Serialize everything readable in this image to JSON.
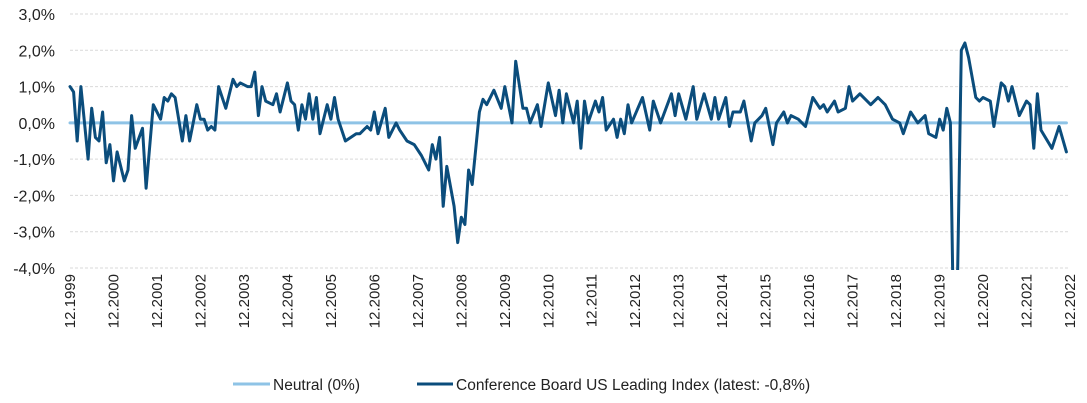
{
  "chart_data": {
    "type": "line",
    "title": "",
    "xlabel": "",
    "ylabel": "",
    "ylim": [
      -4.0,
      3.0
    ],
    "y_ticks": [
      "3,0%",
      "2,0%",
      "1,0%",
      "0,0%",
      "-1,0%",
      "-2,0%",
      "-3,0%",
      "-4,0%"
    ],
    "y_tick_values": [
      3,
      2,
      1,
      0,
      -1,
      -2,
      -3,
      -4
    ],
    "x_range": [
      "1999-12",
      "2022-12"
    ],
    "x_ticks": [
      "12.1999",
      "12.2000",
      "12.2001",
      "12.2002",
      "12.2003",
      "12.2004",
      "12.2005",
      "12.2006",
      "12.2007",
      "12.2008",
      "12.2009",
      "12.2010",
      "12.2011",
      "12.2012",
      "12.2013",
      "12.2014",
      "12.2015",
      "12.2016",
      "12.2017",
      "12.2018",
      "12.2019",
      "12.2020",
      "12.2021",
      "12.2022"
    ],
    "grid": "horizontal-dashed",
    "legend_placement": "bottom",
    "series": [
      {
        "name": "Neutral (0%)",
        "color": "#8ec3e6",
        "points": [
          [
            "1999-12",
            0
          ],
          [
            "2022-11",
            0
          ]
        ]
      },
      {
        "name": "Conference Board US Leading Index (latest: -0,8%)",
        "color": "#0b4d7c",
        "points": [
          [
            "1999-12",
            1.0
          ],
          [
            "2000-01",
            0.85
          ],
          [
            "2000-02",
            -0.5
          ],
          [
            "2000-03",
            1.0
          ],
          [
            "2000-05",
            -1.0
          ],
          [
            "2000-06",
            0.4
          ],
          [
            "2000-07",
            -0.4
          ],
          [
            "2000-08",
            -0.5
          ],
          [
            "2000-09",
            0.3
          ],
          [
            "2000-10",
            -1.1
          ],
          [
            "2000-11",
            -0.6
          ],
          [
            "2000-12",
            -1.6
          ],
          [
            "2001-01",
            -0.8
          ],
          [
            "2001-03",
            -1.6
          ],
          [
            "2001-04",
            -1.3
          ],
          [
            "2001-05",
            0.2
          ],
          [
            "2001-06",
            -0.7
          ],
          [
            "2001-08",
            -0.15
          ],
          [
            "2001-09",
            -1.8
          ],
          [
            "2001-11",
            0.5
          ],
          [
            "2002-01",
            0.1
          ],
          [
            "2002-02",
            0.7
          ],
          [
            "2002-03",
            0.6
          ],
          [
            "2002-04",
            0.8
          ],
          [
            "2002-05",
            0.7
          ],
          [
            "2002-07",
            -0.5
          ],
          [
            "2002-08",
            0.2
          ],
          [
            "2002-09",
            -0.5
          ],
          [
            "2002-11",
            0.5
          ],
          [
            "2002-12",
            0.1
          ],
          [
            "2003-01",
            0.1
          ],
          [
            "2003-02",
            -0.2
          ],
          [
            "2003-03",
            -0.1
          ],
          [
            "2003-04",
            -0.2
          ],
          [
            "2003-05",
            1.0
          ],
          [
            "2003-07",
            0.4
          ],
          [
            "2003-09",
            1.2
          ],
          [
            "2003-10",
            1.0
          ],
          [
            "2003-11",
            1.1
          ],
          [
            "2004-01",
            1.0
          ],
          [
            "2004-02",
            1.0
          ],
          [
            "2004-03",
            1.4
          ],
          [
            "2004-04",
            0.2
          ],
          [
            "2004-05",
            1.0
          ],
          [
            "2004-06",
            0.6
          ],
          [
            "2004-08",
            0.5
          ],
          [
            "2004-09",
            0.8
          ],
          [
            "2004-10",
            0.3
          ],
          [
            "2004-12",
            1.1
          ],
          [
            "2005-01",
            0.6
          ],
          [
            "2005-02",
            0.5
          ],
          [
            "2005-03",
            -0.2
          ],
          [
            "2005-04",
            0.5
          ],
          [
            "2005-05",
            0.1
          ],
          [
            "2005-06",
            0.8
          ],
          [
            "2005-07",
            0.1
          ],
          [
            "2005-08",
            0.7
          ],
          [
            "2005-09",
            -0.3
          ],
          [
            "2005-11",
            0.5
          ],
          [
            "2005-12",
            0.1
          ],
          [
            "2006-01",
            0.7
          ],
          [
            "2006-02",
            0.1
          ],
          [
            "2006-04",
            -0.5
          ],
          [
            "2006-07",
            -0.3
          ],
          [
            "2006-08",
            -0.3
          ],
          [
            "2006-10",
            -0.1
          ],
          [
            "2006-11",
            -0.2
          ],
          [
            "2006-12",
            0.3
          ],
          [
            "2007-01",
            -0.3
          ],
          [
            "2007-03",
            0.4
          ],
          [
            "2007-04",
            -0.4
          ],
          [
            "2007-06",
            0.0
          ],
          [
            "2007-07",
            -0.2
          ],
          [
            "2007-09",
            -0.5
          ],
          [
            "2007-11",
            -0.6
          ],
          [
            "2008-01",
            -0.9
          ],
          [
            "2008-03",
            -1.3
          ],
          [
            "2008-04",
            -0.6
          ],
          [
            "2008-05",
            -1.0
          ],
          [
            "2008-06",
            -0.4
          ],
          [
            "2008-07",
            -2.3
          ],
          [
            "2008-08",
            -1.2
          ],
          [
            "2008-10",
            -2.3
          ],
          [
            "2008-11",
            -3.3
          ],
          [
            "2008-12",
            -2.6
          ],
          [
            "2009-01",
            -2.8
          ],
          [
            "2009-02",
            -1.3
          ],
          [
            "2009-03",
            -1.7
          ],
          [
            "2009-05",
            0.3
          ],
          [
            "2009-06",
            0.65
          ],
          [
            "2009-07",
            0.5
          ],
          [
            "2009-09",
            0.9
          ],
          [
            "2009-11",
            0.4
          ],
          [
            "2009-12",
            1.0
          ],
          [
            "2010-02",
            0.0
          ],
          [
            "2010-03",
            1.7
          ],
          [
            "2010-05",
            0.4
          ],
          [
            "2010-06",
            0.4
          ],
          [
            "2010-07",
            0.0
          ],
          [
            "2010-09",
            0.5
          ],
          [
            "2010-10",
            -0.1
          ],
          [
            "2010-12",
            1.1
          ],
          [
            "2011-02",
            0.2
          ],
          [
            "2011-03",
            0.9
          ],
          [
            "2011-04",
            0.0
          ],
          [
            "2011-05",
            0.8
          ],
          [
            "2011-07",
            0.0
          ],
          [
            "2011-08",
            0.6
          ],
          [
            "2011-09",
            -0.7
          ],
          [
            "2011-10",
            0.6
          ],
          [
            "2011-11",
            0.0
          ],
          [
            "2012-01",
            0.6
          ],
          [
            "2012-02",
            0.3
          ],
          [
            "2012-03",
            0.7
          ],
          [
            "2012-04",
            -0.2
          ],
          [
            "2012-06",
            0.1
          ],
          [
            "2012-07",
            -0.4
          ],
          [
            "2012-08",
            0.1
          ],
          [
            "2012-09",
            -0.3
          ],
          [
            "2012-10",
            0.5
          ],
          [
            "2012-11",
            0.0
          ],
          [
            "2013-02",
            0.7
          ],
          [
            "2013-04",
            -0.2
          ],
          [
            "2013-05",
            0.6
          ],
          [
            "2013-07",
            0.0
          ],
          [
            "2013-10",
            0.8
          ],
          [
            "2013-11",
            0.2
          ],
          [
            "2013-12",
            0.8
          ],
          [
            "2014-02",
            0.1
          ],
          [
            "2014-04",
            1.0
          ],
          [
            "2014-05",
            0.1
          ],
          [
            "2014-07",
            0.8
          ],
          [
            "2014-09",
            0.1
          ],
          [
            "2014-10",
            0.7
          ],
          [
            "2014-11",
            0.1
          ],
          [
            "2015-01",
            0.7
          ],
          [
            "2015-02",
            -0.1
          ],
          [
            "2015-03",
            0.3
          ],
          [
            "2015-05",
            0.3
          ],
          [
            "2015-06",
            0.6
          ],
          [
            "2015-08",
            -0.5
          ],
          [
            "2015-09",
            0.0
          ],
          [
            "2015-11",
            0.2
          ],
          [
            "2015-12",
            0.4
          ],
          [
            "2016-02",
            -0.6
          ],
          [
            "2016-03",
            0.0
          ],
          [
            "2016-05",
            0.3
          ],
          [
            "2016-06",
            0.0
          ],
          [
            "2016-07",
            0.2
          ],
          [
            "2016-09",
            0.1
          ],
          [
            "2016-11",
            -0.1
          ],
          [
            "2017-01",
            0.7
          ],
          [
            "2017-03",
            0.4
          ],
          [
            "2017-04",
            0.5
          ],
          [
            "2017-05",
            0.3
          ],
          [
            "2017-07",
            0.6
          ],
          [
            "2017-08",
            0.3
          ],
          [
            "2017-10",
            0.4
          ],
          [
            "2017-11",
            1.0
          ],
          [
            "2017-12",
            0.6
          ],
          [
            "2018-02",
            0.8
          ],
          [
            "2018-04",
            0.6
          ],
          [
            "2018-05",
            0.5
          ],
          [
            "2018-07",
            0.7
          ],
          [
            "2018-09",
            0.5
          ],
          [
            "2018-11",
            0.1
          ],
          [
            "2019-01",
            0.0
          ],
          [
            "2019-02",
            -0.3
          ],
          [
            "2019-04",
            0.3
          ],
          [
            "2019-06",
            0.0
          ],
          [
            "2019-08",
            0.2
          ],
          [
            "2019-09",
            -0.3
          ],
          [
            "2019-11",
            -0.4
          ],
          [
            "2019-12",
            0.1
          ],
          [
            "2020-01",
            -0.2
          ],
          [
            "2020-02",
            0.4
          ],
          [
            "2020-03",
            0.0
          ],
          [
            "2020-04",
            -6.7
          ],
          [
            "2020-05",
            -4.0
          ],
          [
            "2020-06",
            2.0
          ],
          [
            "2020-07",
            2.2
          ],
          [
            "2020-08",
            1.8
          ],
          [
            "2020-10",
            0.7
          ],
          [
            "2020-11",
            0.6
          ],
          [
            "2020-12",
            0.7
          ],
          [
            "2021-02",
            0.6
          ],
          [
            "2021-03",
            -0.1
          ],
          [
            "2021-05",
            1.1
          ],
          [
            "2021-06",
            1.0
          ],
          [
            "2021-07",
            0.6
          ],
          [
            "2021-08",
            1.0
          ],
          [
            "2021-10",
            0.2
          ],
          [
            "2021-12",
            0.6
          ],
          [
            "2022-01",
            0.5
          ],
          [
            "2022-02",
            -0.7
          ],
          [
            "2022-03",
            0.8
          ],
          [
            "2022-04",
            -0.2
          ],
          [
            "2022-07",
            -0.7
          ],
          [
            "2022-09",
            -0.1
          ],
          [
            "2022-11",
            -0.8
          ]
        ]
      }
    ]
  }
}
